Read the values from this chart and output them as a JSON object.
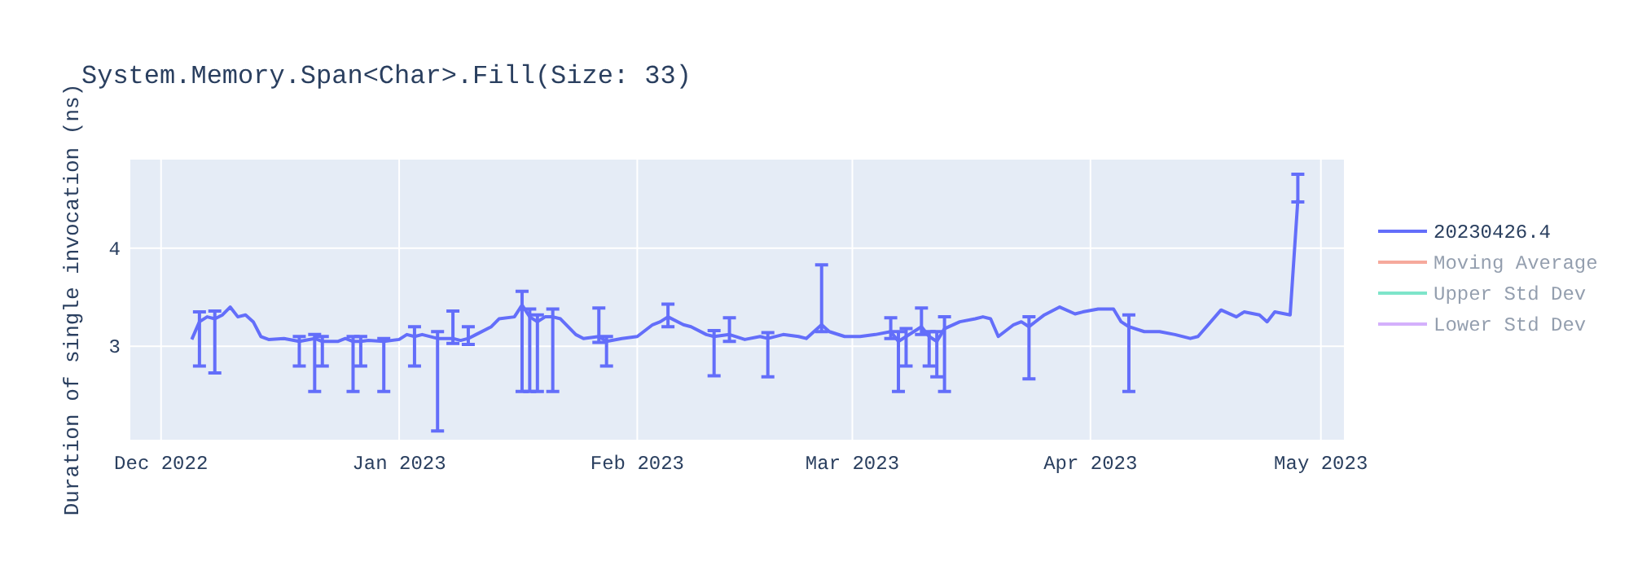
{
  "chart_data": {
    "type": "line",
    "title": "System.Memory.Span<Char>.Fill(Size: 33)",
    "ylabel": "Duration of single invocation (ns)",
    "xlim": [
      "2022-11-27",
      "2023-05-04"
    ],
    "ylim": [
      2.05,
      4.9
    ],
    "xticks": [
      {
        "value": "2022-12-01",
        "label": "Dec 2022"
      },
      {
        "value": "2023-01-01",
        "label": "Jan 2023"
      },
      {
        "value": "2023-02-01",
        "label": "Feb 2023"
      },
      {
        "value": "2023-03-01",
        "label": "Mar 2023"
      },
      {
        "value": "2023-04-01",
        "label": "Apr 2023"
      },
      {
        "value": "2023-05-01",
        "label": "May 2023"
      }
    ],
    "yticks": [
      3,
      4
    ],
    "grid": true,
    "legend": "top right",
    "series": [
      {
        "name": "20230426.4",
        "color": "#636efa",
        "x": [
          "2022-12-05",
          "2022-12-06",
          "2022-12-07",
          "2022-12-08",
          "2022-12-09",
          "2022-12-10",
          "2022-12-11",
          "2022-12-12",
          "2022-12-13",
          "2022-12-14",
          "2022-12-15",
          "2022-12-17",
          "2022-12-19",
          "2022-12-21",
          "2022-12-22",
          "2022-12-24",
          "2022-12-25",
          "2022-12-26",
          "2022-12-27",
          "2022-12-28",
          "2022-12-30",
          "2023-01-01",
          "2023-01-02",
          "2023-01-03",
          "2023-01-04",
          "2023-01-06",
          "2023-01-08",
          "2023-01-09",
          "2023-01-10",
          "2023-01-11",
          "2023-01-13",
          "2023-01-14",
          "2023-01-16",
          "2023-01-17",
          "2023-01-18",
          "2023-01-19",
          "2023-01-20",
          "2023-01-21",
          "2023-01-22",
          "2023-01-24",
          "2023-01-25",
          "2023-01-27",
          "2023-01-28",
          "2023-01-30",
          "2023-02-01",
          "2023-02-03",
          "2023-02-04",
          "2023-02-05",
          "2023-02-07",
          "2023-02-08",
          "2023-02-10",
          "2023-02-11",
          "2023-02-13",
          "2023-02-15",
          "2023-02-17",
          "2023-02-18",
          "2023-02-20",
          "2023-02-22",
          "2023-02-23",
          "2023-02-25",
          "2023-02-26",
          "2023-02-28",
          "2023-03-02",
          "2023-03-04",
          "2023-03-06",
          "2023-03-07",
          "2023-03-08",
          "2023-03-10",
          "2023-03-11",
          "2023-03-12",
          "2023-03-13",
          "2023-03-15",
          "2023-03-17",
          "2023-03-18",
          "2023-03-19",
          "2023-03-20",
          "2023-03-22",
          "2023-03-23",
          "2023-03-24",
          "2023-03-26",
          "2023-03-28",
          "2023-03-30",
          "2023-03-31",
          "2023-04-02",
          "2023-04-04",
          "2023-04-05",
          "2023-04-06",
          "2023-04-08",
          "2023-04-10",
          "2023-04-12",
          "2023-04-14",
          "2023-04-15",
          "2023-04-18",
          "2023-04-20",
          "2023-04-21",
          "2023-04-23",
          "2023-04-24",
          "2023-04-25",
          "2023-04-27",
          "2023-04-28"
        ],
        "values": [
          3.07,
          3.25,
          3.3,
          3.28,
          3.32,
          3.4,
          3.3,
          3.32,
          3.25,
          3.1,
          3.07,
          3.08,
          3.05,
          3.08,
          3.05,
          3.05,
          3.08,
          3.05,
          3.05,
          3.06,
          3.05,
          3.07,
          3.12,
          3.1,
          3.12,
          3.08,
          3.08,
          3.06,
          3.08,
          3.12,
          3.2,
          3.28,
          3.3,
          3.42,
          3.3,
          3.25,
          3.3,
          3.3,
          3.28,
          3.12,
          3.08,
          3.1,
          3.05,
          3.08,
          3.1,
          3.22,
          3.25,
          3.3,
          3.22,
          3.2,
          3.12,
          3.1,
          3.12,
          3.07,
          3.1,
          3.08,
          3.12,
          3.1,
          3.08,
          3.22,
          3.15,
          3.1,
          3.1,
          3.12,
          3.15,
          3.05,
          3.1,
          3.2,
          3.1,
          3.05,
          3.18,
          3.25,
          3.28,
          3.3,
          3.28,
          3.1,
          3.22,
          3.25,
          3.2,
          3.32,
          3.4,
          3.33,
          3.35,
          3.38,
          3.38,
          3.25,
          3.2,
          3.15,
          3.15,
          3.12,
          3.08,
          3.1,
          3.37,
          3.3,
          3.35,
          3.32,
          3.25,
          3.35,
          3.32,
          4.49
        ],
        "errors": [
          null,
          [
            2.8,
            3.35
          ],
          null,
          [
            2.73,
            3.36
          ],
          null,
          null,
          null,
          null,
          null,
          null,
          null,
          null,
          [
            2.8,
            3.1
          ],
          [
            2.54,
            3.12
          ],
          [
            2.8,
            3.1
          ],
          null,
          null,
          [
            2.54,
            3.1
          ],
          [
            2.8,
            3.1
          ],
          null,
          [
            2.54,
            3.08
          ],
          null,
          null,
          [
            2.8,
            3.2
          ],
          null,
          [
            2.14,
            3.15
          ],
          [
            3.03,
            3.36
          ],
          null,
          [
            3.02,
            3.2
          ],
          null,
          null,
          null,
          null,
          [
            2.54,
            3.56
          ],
          [
            2.54,
            3.38
          ],
          [
            2.54,
            3.32
          ],
          null,
          [
            2.54,
            3.38
          ],
          null,
          null,
          null,
          [
            3.04,
            3.39
          ],
          [
            2.8,
            3.1
          ],
          null,
          null,
          null,
          null,
          [
            3.2,
            3.43
          ],
          null,
          null,
          null,
          [
            2.7,
            3.16
          ],
          [
            3.05,
            3.29
          ],
          null,
          null,
          [
            2.69,
            3.14
          ],
          null,
          null,
          null,
          [
            3.15,
            3.83
          ],
          null,
          null,
          null,
          null,
          [
            3.08,
            3.29
          ],
          [
            2.54,
            3.15
          ],
          [
            2.8,
            3.18
          ],
          [
            3.12,
            3.39
          ],
          [
            2.8,
            3.15
          ],
          [
            2.69,
            3.15
          ],
          [
            2.54,
            3.3
          ],
          null,
          null,
          null,
          null,
          null,
          null,
          null,
          [
            2.67,
            3.3
          ],
          null,
          null,
          null,
          null,
          null,
          null,
          null,
          [
            2.54,
            3.32
          ],
          null,
          null,
          null,
          null,
          null,
          null,
          null,
          null,
          null,
          null,
          null,
          null,
          [
            4.47,
            4.75
          ]
        ]
      },
      {
        "name": "Moving Average",
        "color": "#ef553b"
      },
      {
        "name": "Upper Std Dev",
        "color": "#00cc96"
      },
      {
        "name": "Lower Std Dev",
        "color": "#ab63fa"
      }
    ]
  }
}
